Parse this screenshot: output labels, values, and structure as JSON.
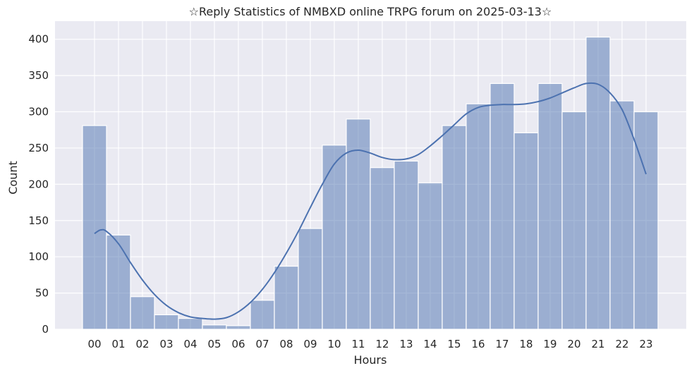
{
  "chart_data": {
    "type": "bar",
    "title": "☆Reply Statistics of NMBXD online TRPG forum on 2025-03-13☆",
    "xlabel": "Hours",
    "ylabel": "Count",
    "categories": [
      "00",
      "01",
      "02",
      "03",
      "04",
      "05",
      "06",
      "07",
      "08",
      "09",
      "10",
      "11",
      "12",
      "13",
      "14",
      "15",
      "16",
      "17",
      "18",
      "19",
      "20",
      "21",
      "22",
      "23"
    ],
    "values": [
      281,
      130,
      45,
      20,
      15,
      6,
      5,
      40,
      87,
      139,
      254,
      290,
      223,
      232,
      202,
      281,
      311,
      339,
      271,
      339,
      300,
      403,
      315,
      300
    ],
    "ylim": [
      0,
      425
    ],
    "yticks": [
      0,
      50,
      100,
      150,
      200,
      250,
      300,
      350,
      400
    ],
    "kde": {
      "x": [
        0,
        0.25,
        0.5,
        1,
        1.5,
        2,
        2.5,
        3,
        3.5,
        4,
        4.5,
        5,
        5.5,
        6,
        6.5,
        7,
        7.5,
        8,
        8.5,
        9,
        9.5,
        10,
        10.5,
        11,
        11.5,
        12,
        12.5,
        13,
        13.5,
        14,
        14.5,
        15,
        15.5,
        16,
        16.5,
        17,
        17.5,
        18,
        18.5,
        19,
        19.5,
        20,
        20.5,
        21,
        21.5,
        22,
        22.5,
        23
      ],
      "y": [
        132,
        137,
        135,
        118,
        92,
        68,
        48,
        33,
        23,
        17,
        15,
        14,
        16,
        24,
        37,
        55,
        78,
        105,
        135,
        168,
        200,
        228,
        243,
        247,
        243,
        237,
        234,
        235,
        241,
        253,
        267,
        282,
        297,
        306,
        309,
        310,
        310,
        311,
        314,
        319,
        326,
        333,
        339,
        338,
        326,
        303,
        262,
        214
      ]
    },
    "bar_color": "#4c72b0",
    "line_color": "#4c72b0",
    "background_color": "#eaeaf2",
    "grid": true
  }
}
